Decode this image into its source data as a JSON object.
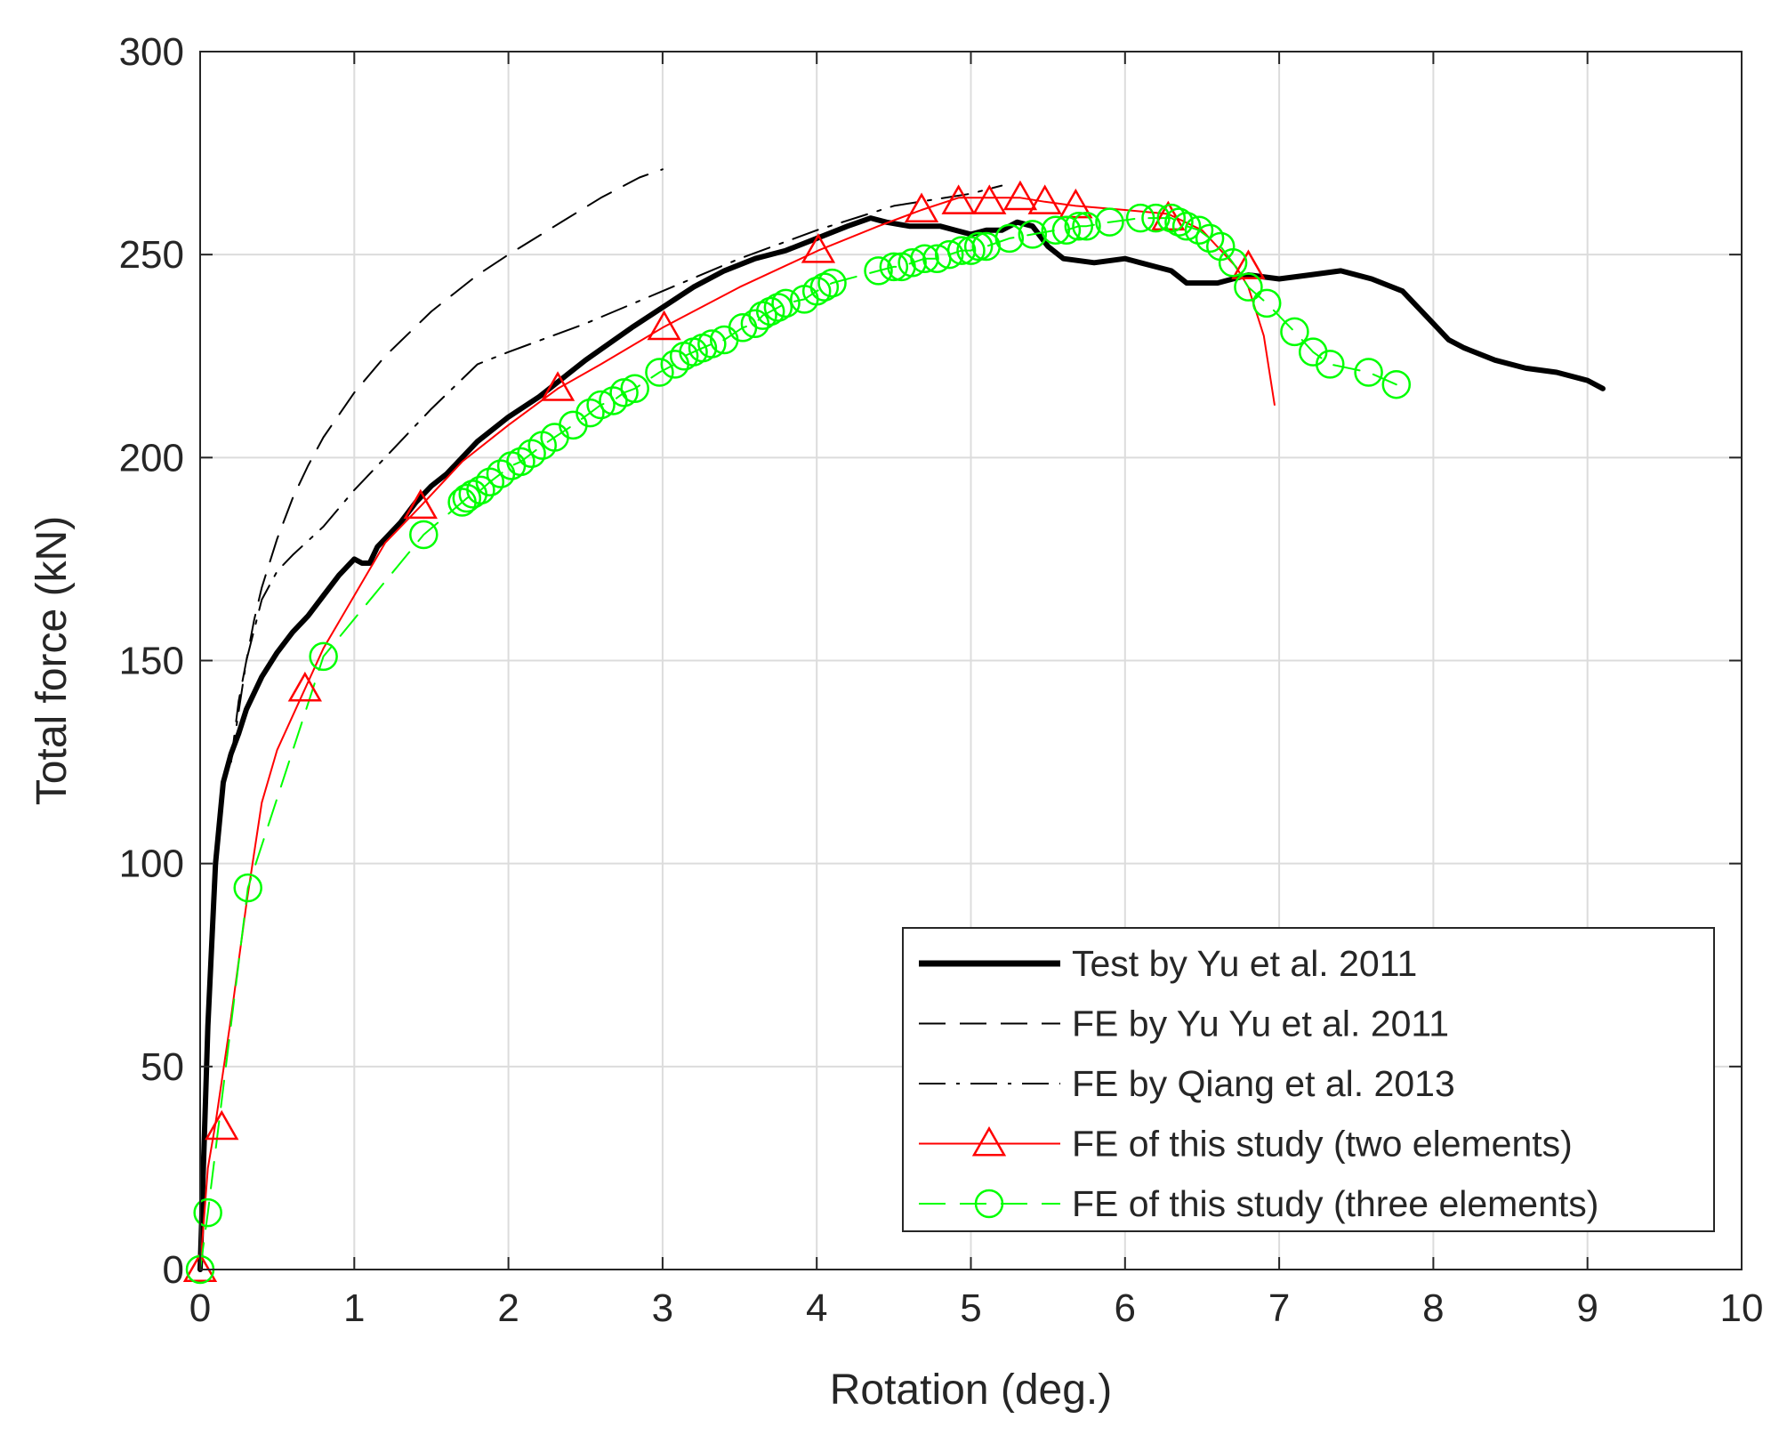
{
  "chart_data": {
    "type": "line",
    "title": "",
    "xlabel": "Rotation (deg.)",
    "ylabel": "Total force (kN)",
    "xlim": [
      0,
      10
    ],
    "ylim": [
      0,
      300
    ],
    "xticks": [
      0,
      1,
      2,
      3,
      4,
      5,
      6,
      7,
      8,
      9,
      10
    ],
    "yticks": [
      0,
      50,
      100,
      150,
      200,
      250,
      300
    ],
    "grid": true,
    "legend_position": "bottom-right",
    "series": [
      {
        "name": "Test by Yu et al. 2011",
        "color": "#000000",
        "line": "solid",
        "marker": "none",
        "x": [
          0,
          0.05,
          0.1,
          0.15,
          0.2,
          0.25,
          0.3,
          0.4,
          0.5,
          0.6,
          0.7,
          0.8,
          0.9,
          1.0,
          1.05,
          1.1,
          1.15,
          1.2,
          1.3,
          1.4,
          1.5,
          1.6,
          1.7,
          1.8,
          1.9,
          2.0,
          2.2,
          2.5,
          2.8,
          3.0,
          3.2,
          3.4,
          3.6,
          3.8,
          4.0,
          4.2,
          4.35,
          4.45,
          4.6,
          4.8,
          5.0,
          5.1,
          5.2,
          5.3,
          5.4,
          5.5,
          5.6,
          5.8,
          6.0,
          6.1,
          6.2,
          6.3,
          6.4,
          6.5,
          6.6,
          6.7,
          6.8,
          7.0,
          7.2,
          7.4,
          7.6,
          7.8,
          8.0,
          8.1,
          8.2,
          8.4,
          8.6,
          8.8,
          9.0,
          9.1
        ],
        "y": [
          0,
          60,
          100,
          120,
          127,
          132,
          138,
          146,
          152,
          157,
          161,
          166,
          171,
          175,
          174,
          174,
          178,
          180,
          184,
          189,
          193,
          196,
          200,
          204,
          207,
          210,
          215,
          224,
          232,
          237,
          242,
          246,
          249,
          251,
          254,
          257,
          259,
          258,
          257,
          257,
          255,
          256,
          256,
          258,
          257,
          252,
          249,
          248,
          249,
          248,
          247,
          246,
          243,
          243,
          243,
          244,
          245,
          244,
          245,
          246,
          244,
          241,
          233,
          229,
          227,
          224,
          222,
          221,
          219,
          217
        ]
      },
      {
        "name": "FE by Yu Yu et al. 2011",
        "color": "#000000",
        "line": "dashed",
        "marker": "none",
        "x": [
          0.2,
          0.25,
          0.3,
          0.35,
          0.4,
          0.5,
          0.6,
          0.7,
          0.8,
          1.0,
          1.2,
          1.5,
          1.8,
          2.0,
          2.3,
          2.6,
          2.85,
          3.0
        ],
        "y": [
          125,
          140,
          150,
          160,
          168,
          180,
          190,
          198,
          205,
          216,
          225,
          236,
          245,
          250,
          257,
          264,
          269,
          271
        ]
      },
      {
        "name": "FE by Qiang et al. 2013",
        "color": "#000000",
        "line": "dashdot",
        "marker": "none",
        "x": [
          0.2,
          0.3,
          0.4,
          0.5,
          0.6,
          0.8,
          1.0,
          1.2,
          1.5,
          1.8,
          2.0,
          2.5,
          3.0,
          3.5,
          4.0,
          4.5,
          5.0,
          5.2
        ],
        "y": [
          125,
          150,
          165,
          172,
          176,
          183,
          192,
          200,
          212,
          223,
          226,
          233,
          241,
          249,
          256,
          262,
          265,
          267
        ]
      },
      {
        "name": "FE of this study (two elements)",
        "color": "#ff0000",
        "line": "solid",
        "marker": "triangle",
        "x": [
          0,
          0.03,
          0.05,
          0.1,
          0.2,
          0.3,
          0.4,
          0.5,
          0.68,
          0.8,
          1.0,
          1.2,
          1.43,
          1.7,
          2.0,
          2.32,
          2.6,
          3.0,
          3.5,
          4.01,
          4.4,
          4.68,
          4.92,
          5.12,
          5.32,
          5.48,
          5.68,
          6.0,
          6.28,
          6.5,
          6.72,
          6.8,
          6.9,
          6.97
        ],
        "y": [
          0,
          15,
          25,
          36,
          62,
          90,
          115,
          128,
          143,
          153,
          166,
          179,
          188,
          199,
          208,
          217,
          223,
          232,
          242,
          251,
          257,
          261,
          264,
          264,
          264,
          263,
          262,
          261,
          260,
          256,
          247,
          242,
          230,
          213
        ],
        "marker_x": [
          0,
          0.14,
          0.68,
          1.43,
          2.32,
          3.01,
          4.01,
          4.68,
          4.92,
          5.12,
          5.32,
          5.48,
          5.68,
          6.28,
          6.8
        ],
        "marker_y": [
          0,
          35,
          143,
          188,
          217,
          232,
          251,
          261,
          263,
          263,
          264,
          263,
          262,
          259,
          247
        ]
      },
      {
        "name": "FE of this study (three elements)",
        "color": "#00ff00",
        "line": "dashed",
        "marker": "circle",
        "x": [
          0,
          0.05,
          0.31,
          0.8,
          1.45,
          1.7,
          1.73,
          1.77,
          1.82,
          1.88,
          1.95,
          2.02,
          2.08,
          2.15,
          2.22,
          2.3,
          2.42,
          2.53,
          2.6,
          2.68,
          2.75,
          2.82,
          2.98,
          3.08,
          3.14,
          3.2,
          3.26,
          3.32,
          3.4,
          3.52,
          3.6,
          3.65,
          3.7,
          3.75,
          3.8,
          3.92,
          4.0,
          4.05,
          4.1,
          4.4,
          4.5,
          4.55,
          4.62,
          4.7,
          4.78,
          4.86,
          4.94,
          5.0,
          5.05,
          5.1,
          5.25,
          5.4,
          5.55,
          5.62,
          5.7,
          5.75,
          5.9,
          6.1,
          6.2,
          6.3,
          6.35,
          6.4,
          6.48,
          6.55,
          6.62,
          6.7,
          6.8,
          6.92,
          7.1,
          7.22,
          7.33,
          7.58,
          7.76
        ],
        "y": [
          0,
          14,
          94,
          151,
          181,
          189,
          190,
          191,
          192,
          194,
          196,
          198,
          199,
          201,
          203,
          205,
          208,
          211,
          213,
          214,
          216,
          217,
          221,
          223,
          225,
          226,
          227,
          228,
          229,
          232,
          233,
          235,
          236,
          237,
          238,
          239,
          241,
          242,
          243,
          246,
          247,
          247,
          248,
          249,
          249,
          250,
          251,
          251,
          252,
          252,
          254,
          255,
          256,
          256,
          257,
          257,
          258,
          259,
          259,
          259,
          258,
          257,
          256,
          254,
          252,
          248,
          242,
          238,
          231,
          226,
          223,
          221,
          218
        ]
      }
    ]
  }
}
